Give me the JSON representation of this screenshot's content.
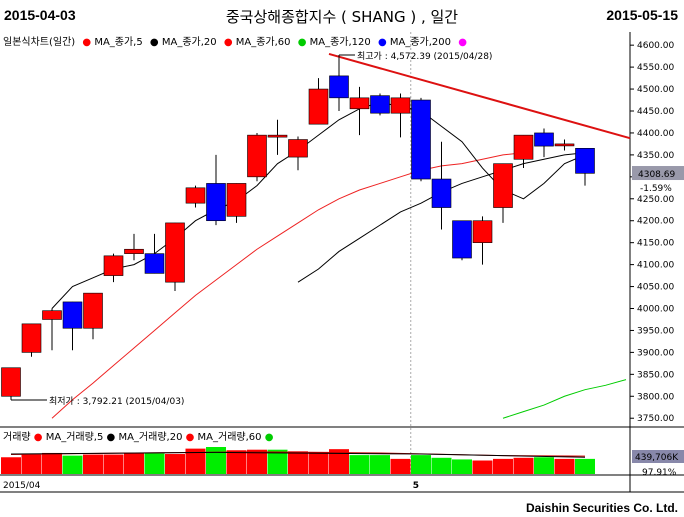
{
  "header": {
    "start_date": "2015-04-03",
    "title": "중국상해종합지수 ( SHANG ) , 일간",
    "end_date": "2015-05-15"
  },
  "legend": {
    "chart_label": "일본식차트(일간)",
    "items": [
      {
        "label": "MA_종가,5",
        "color": "#ff0000"
      },
      {
        "label": "MA_종가,20",
        "color": "#000000"
      },
      {
        "label": "MA_종가,60",
        "color": "#ff0000"
      },
      {
        "label": "MA_종가,120",
        "color": "#00cc00"
      },
      {
        "label": "MA_종가,200",
        "color": "#0000ff"
      }
    ],
    "trailing_color": "#ff00ff"
  },
  "volume_legend": {
    "label": "거래량",
    "items": [
      {
        "label": "MA_거래량,5",
        "color": "#ff0000"
      },
      {
        "label": "MA_거래량,20",
        "color": "#000000"
      },
      {
        "label": "MA_거래량,60",
        "color": "#ff0000"
      }
    ],
    "trailing_color": "#00cc00"
  },
  "annotations": {
    "high": "최고가 : 4,572.39 (2015/04/28)",
    "low": "최저가 : 3,792.21 (2015/04/03)"
  },
  "current": {
    "price": "4308.69",
    "change": "-1.59%",
    "volume": "439,706K",
    "volume_pct": "97.91%"
  },
  "footer": "Daishin Securities Co. Ltd.",
  "colors": {
    "up": "#ff0000",
    "down": "#0000ff",
    "volume": "#00ee00",
    "trendline": "#dd1111"
  },
  "chart_data": {
    "type": "candlestick",
    "title": "중국상해종합지수 ( SHANG ) , 일간",
    "x_tick_labels": [
      "2015/04",
      "5"
    ],
    "y_range": [
      3730,
      4630
    ],
    "y_ticks": [
      3750,
      3800,
      3850,
      3900,
      3950,
      4000,
      4050,
      4100,
      4150,
      4200,
      4250,
      4300,
      4350,
      4400,
      4450,
      4500,
      4550,
      4600
    ],
    "candles": [
      {
        "o": 3800,
        "c": 3865,
        "h": 3865,
        "l": 3792
      },
      {
        "o": 3900,
        "c": 3965,
        "h": 3965,
        "l": 3890
      },
      {
        "o": 3975,
        "c": 3995,
        "h": 4000,
        "l": 3905
      },
      {
        "o": 4015,
        "c": 3955,
        "h": 4015,
        "l": 3905
      },
      {
        "o": 3955,
        "c": 4035,
        "h": 4035,
        "l": 3930
      },
      {
        "o": 4075,
        "c": 4120,
        "h": 4125,
        "l": 4060
      },
      {
        "o": 4125,
        "c": 4135,
        "h": 4170,
        "l": 4110
      },
      {
        "o": 4125,
        "c": 4080,
        "h": 4170,
        "l": 4080
      },
      {
        "o": 4060,
        "c": 4195,
        "h": 4195,
        "l": 4040
      },
      {
        "o": 4240,
        "c": 4275,
        "h": 4280,
        "l": 4230
      },
      {
        "o": 4285,
        "c": 4200,
        "h": 4350,
        "l": 4190
      },
      {
        "o": 4210,
        "c": 4285,
        "h": 4285,
        "l": 4195
      },
      {
        "o": 4300,
        "c": 4395,
        "h": 4400,
        "l": 4290
      },
      {
        "o": 4395,
        "c": 4395,
        "h": 4430,
        "l": 4350
      },
      {
        "o": 4345,
        "c": 4385,
        "h": 4392,
        "l": 4315
      },
      {
        "o": 4420,
        "c": 4500,
        "h": 4525,
        "l": 4420
      },
      {
        "o": 4530,
        "c": 4480,
        "h": 4572,
        "l": 4450
      },
      {
        "o": 4455,
        "c": 4480,
        "h": 4505,
        "l": 4395
      },
      {
        "o": 4485,
        "c": 4445,
        "h": 4490,
        "l": 4440
      },
      {
        "o": 4445,
        "c": 4480,
        "h": 4490,
        "l": 4390
      },
      {
        "o": 4475,
        "c": 4295,
        "h": 4480,
        "l": 4290
      },
      {
        "o": 4295,
        "c": 4230,
        "h": 4380,
        "l": 4180
      },
      {
        "o": 4200,
        "c": 4115,
        "h": 4200,
        "l": 4110
      },
      {
        "o": 4150,
        "c": 4200,
        "h": 4210,
        "l": 4100
      },
      {
        "o": 4230,
        "c": 4330,
        "h": 4330,
        "l": 4195
      },
      {
        "o": 4340,
        "c": 4395,
        "h": 4395,
        "l": 4320
      },
      {
        "o": 4400,
        "c": 4370,
        "h": 4410,
        "l": 4345
      },
      {
        "o": 4375,
        "c": 4375,
        "h": 4385,
        "l": 4360
      },
      {
        "o": 4365,
        "c": 4308,
        "h": 4365,
        "l": 4280
      }
    ],
    "ma5": [
      4000,
      4050,
      4070,
      4090,
      4100,
      4125,
      4160,
      4200,
      4225,
      4245,
      4280,
      4330,
      4360,
      4395,
      4430,
      4455,
      4470,
      4460,
      4450,
      4415,
      4380,
      4320,
      4270,
      4250,
      4285,
      4330,
      4350
    ],
    "ma20": [
      4060,
      4090,
      4130,
      4160,
      4190,
      4220,
      4240,
      4265,
      4285,
      4300,
      4315,
      4330,
      4340,
      4350,
      4355
    ],
    "ma60": [
      3750,
      3792,
      3830,
      3870,
      3910,
      3950,
      3990,
      4030,
      4065,
      4100,
      4135,
      4165,
      4195,
      4225,
      4250,
      4270,
      4285,
      4300,
      4315,
      4325,
      4330,
      4340,
      4350,
      4355
    ],
    "ma120": [
      3750,
      3765,
      3780,
      3800,
      3815,
      3825,
      3838
    ],
    "trendline": [
      [
        16,
        4580
      ],
      [
        30,
        4388
      ]
    ],
    "volume": [
      0.62,
      0.72,
      0.78,
      0.68,
      0.72,
      0.72,
      0.76,
      0.76,
      0.74,
      0.94,
      1.0,
      0.88,
      0.9,
      0.9,
      0.84,
      0.82,
      0.92,
      0.7,
      0.7,
      0.56,
      0.7,
      0.6,
      0.54,
      0.5,
      0.56,
      0.6,
      0.62,
      0.56,
      0.56
    ],
    "volume_up": [
      true,
      true,
      true,
      false,
      true,
      true,
      true,
      false,
      true,
      true,
      false,
      true,
      true,
      false,
      true,
      true,
      true,
      false,
      false,
      true,
      false,
      false,
      false,
      true,
      true,
      true,
      false,
      true,
      false
    ]
  }
}
